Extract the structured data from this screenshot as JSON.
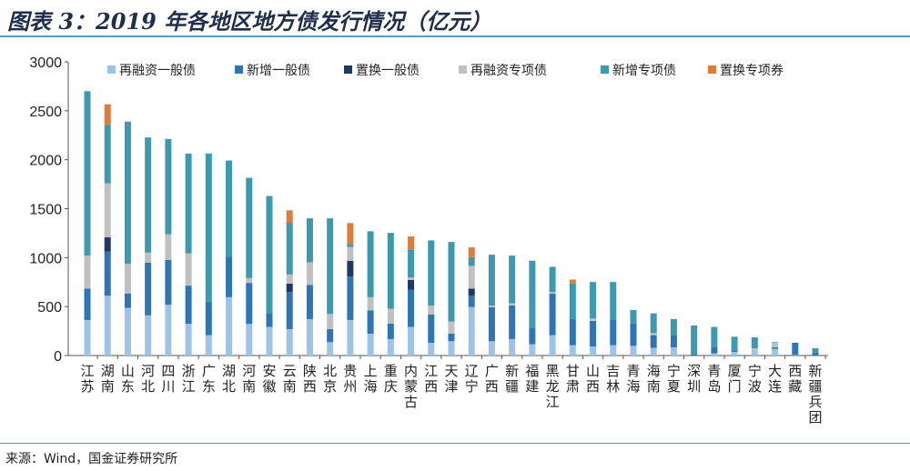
{
  "title": "图表 3：2019 年各地区地方债发行情况（亿元）",
  "source": "来源：Wind，国金证券研究所",
  "chart_data": {
    "type": "bar",
    "stacked": true,
    "title": "图表 3：2019 年各地区地方债发行情况（亿元）",
    "xlabel": "",
    "ylabel": "",
    "ylim": [
      0,
      3000
    ],
    "yticks": [
      0,
      500,
      1000,
      1500,
      2000,
      2500,
      3000
    ],
    "grid": false,
    "legend": "top",
    "categories": [
      "江苏",
      "湖南",
      "山东",
      "河北",
      "四川",
      "浙江",
      "广东",
      "湖北",
      "河南",
      "安徽",
      "云南",
      "陕西",
      "北京",
      "贵州",
      "上海",
      "重庆",
      "内蒙古",
      "江西",
      "天津",
      "辽宁",
      "广西",
      "新疆",
      "福建",
      "黑龙江",
      "甘肃",
      "山西",
      "吉林",
      "青海",
      "海南",
      "宁夏",
      "深圳",
      "青岛",
      "厦门",
      "宁波",
      "大连",
      "西藏",
      "新疆兵团"
    ],
    "series": [
      {
        "name": "再融资一般债",
        "color": "#9dc3e6",
        "values": [
          363,
          611,
          487,
          410,
          518,
          323,
          208,
          596,
          323,
          292,
          270,
          372,
          137,
          363,
          223,
          168,
          292,
          130,
          146,
          496,
          146,
          168,
          115,
          208,
          105,
          93,
          105,
          99,
          78,
          84,
          0,
          22,
          37,
          53,
          68,
          5,
          0
        ]
      },
      {
        "name": "新增一般债",
        "color": "#2e75b6",
        "values": [
          320,
          450,
          146,
          539,
          459,
          391,
          341,
          412,
          419,
          142,
          378,
          348,
          133,
          444,
          239,
          158,
          381,
          289,
          77,
          115,
          347,
          344,
          170,
          425,
          267,
          261,
          264,
          233,
          130,
          124,
          10,
          62,
          16,
          0,
          16,
          125,
          30
        ]
      },
      {
        "name": "置换一般债",
        "color": "#1f3864",
        "values": [
          0,
          146,
          0,
          0,
          0,
          0,
          0,
          0,
          0,
          0,
          87,
          0,
          0,
          161,
          0,
          0,
          100,
          0,
          0,
          72,
          0,
          0,
          0,
          0,
          0,
          0,
          0,
          0,
          0,
          0,
          0,
          0,
          0,
          0,
          0,
          0,
          0
        ]
      },
      {
        "name": "再融资专项债",
        "color": "#c0c0c0",
        "values": [
          338,
          552,
          304,
          103,
          261,
          329,
          0,
          0,
          49,
          0,
          93,
          233,
          155,
          142,
          134,
          152,
          24,
          90,
          125,
          232,
          16,
          22,
          0,
          15,
          0,
          24,
          0,
          0,
          22,
          0,
          0,
          0,
          0,
          21,
          46,
          0,
          0
        ]
      },
      {
        "name": "新增专项债",
        "color": "#3d9aae",
        "values": [
          1679,
          596,
          1452,
          1176,
          974,
          1020,
          1514,
          984,
          1024,
          1195,
          528,
          449,
          977,
          30,
          673,
          775,
          286,
          667,
          812,
          90,
          521,
          487,
          683,
          258,
          363,
          373,
          382,
          133,
          201,
          164,
          297,
          208,
          139,
          112,
          7,
          0,
          44
        ]
      },
      {
        "name": "置换专项券",
        "color": "#e07b39",
        "values": [
          0,
          211,
          0,
          0,
          0,
          0,
          0,
          0,
          0,
          0,
          127,
          0,
          0,
          213,
          0,
          0,
          133,
          0,
          0,
          100,
          0,
          0,
          0,
          0,
          41,
          0,
          0,
          0,
          0,
          0,
          0,
          0,
          0,
          0,
          0,
          0,
          0
        ]
      }
    ]
  }
}
